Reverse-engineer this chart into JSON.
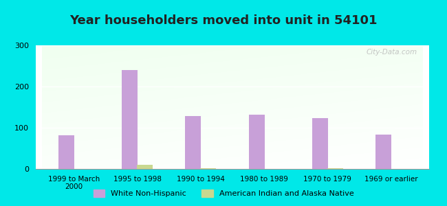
{
  "title": "Year householders moved into unit in 54101",
  "categories": [
    "1999 to March\n2000",
    "1995 to 1998",
    "1990 to 1994",
    "1980 to 1989",
    "1970 to 1979",
    "1969 or earlier"
  ],
  "white_non_hispanic": [
    82,
    240,
    128,
    132,
    124,
    83
  ],
  "american_indian": [
    0,
    10,
    2,
    0,
    2,
    0
  ],
  "bar_color_white": "#c8a0d8",
  "bar_color_indian": "#c8d890",
  "background_outer": "#00e8e8",
  "ylim": [
    0,
    300
  ],
  "yticks": [
    0,
    100,
    200,
    300
  ],
  "title_fontsize": 13,
  "legend_label_white": "White Non-Hispanic",
  "legend_label_indian": "American Indian and Alaska Native",
  "watermark": "City-Data.com"
}
